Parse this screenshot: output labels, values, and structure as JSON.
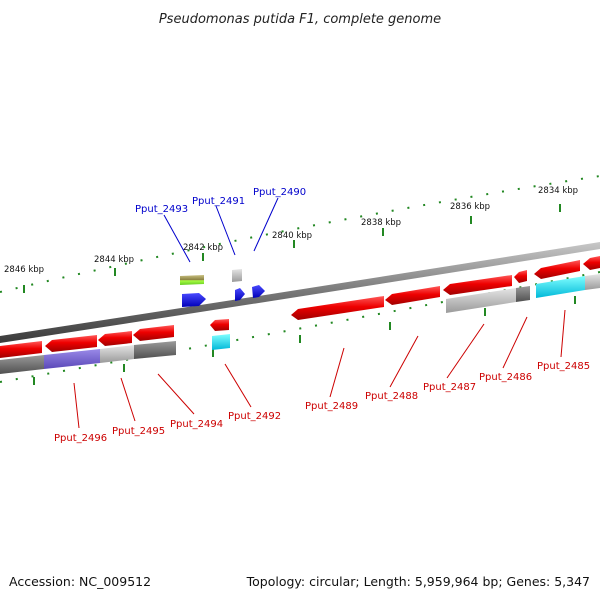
{
  "title": "Pseudomonas putida F1, complete genome",
  "footer": {
    "accession": "Accession: NC_009512",
    "summary": "Topology: circular; Length: 5,959,964 bp; Genes: 5,347"
  },
  "colors": {
    "forward_label": "#0000cc",
    "reverse_label": "#cc0000",
    "cds": "#ff0000",
    "backbone": "#888888",
    "tick": "#228822"
  },
  "scale_labels": [
    "2846 kbp",
    "2844 kbp",
    "2842 kbp",
    "2840 kbp",
    "2838 kbp",
    "2836 kbp",
    "2834 kbp"
  ],
  "genes_forward": [
    {
      "name": "Pput_2493"
    },
    {
      "name": "Pput_2491"
    },
    {
      "name": "Pput_2490"
    }
  ],
  "genes_reverse": [
    {
      "name": "Pput_2496"
    },
    {
      "name": "Pput_2495"
    },
    {
      "name": "Pput_2494"
    },
    {
      "name": "Pput_2492"
    },
    {
      "name": "Pput_2489"
    },
    {
      "name": "Pput_2488"
    },
    {
      "name": "Pput_2487"
    },
    {
      "name": "Pput_2486"
    },
    {
      "name": "Pput_2485"
    }
  ]
}
